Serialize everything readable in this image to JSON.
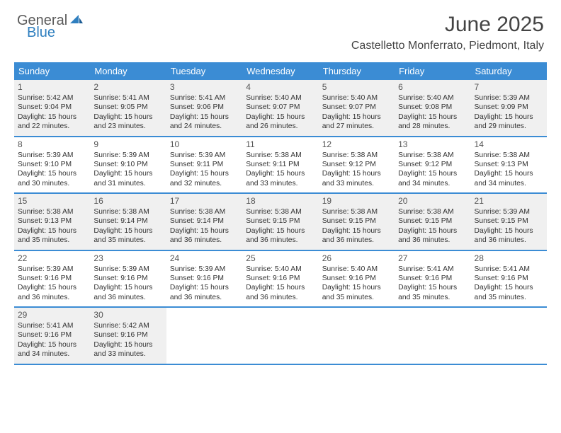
{
  "logo": {
    "text1": "General",
    "text2": "Blue"
  },
  "title": "June 2025",
  "location": "Castelletto Monferrato, Piedmont, Italy",
  "header_bg": "#3b8cd4",
  "shade_bg": "#f0f0f0",
  "day_names": [
    "Sunday",
    "Monday",
    "Tuesday",
    "Wednesday",
    "Thursday",
    "Friday",
    "Saturday"
  ],
  "weeks": [
    [
      {
        "n": "1",
        "shade": true,
        "sr": "5:42 AM",
        "ss": "9:04 PM",
        "dl": "15 hours and 22 minutes."
      },
      {
        "n": "2",
        "shade": true,
        "sr": "5:41 AM",
        "ss": "9:05 PM",
        "dl": "15 hours and 23 minutes."
      },
      {
        "n": "3",
        "shade": true,
        "sr": "5:41 AM",
        "ss": "9:06 PM",
        "dl": "15 hours and 24 minutes."
      },
      {
        "n": "4",
        "shade": true,
        "sr": "5:40 AM",
        "ss": "9:07 PM",
        "dl": "15 hours and 26 minutes."
      },
      {
        "n": "5",
        "shade": true,
        "sr": "5:40 AM",
        "ss": "9:07 PM",
        "dl": "15 hours and 27 minutes."
      },
      {
        "n": "6",
        "shade": true,
        "sr": "5:40 AM",
        "ss": "9:08 PM",
        "dl": "15 hours and 28 minutes."
      },
      {
        "n": "7",
        "shade": true,
        "sr": "5:39 AM",
        "ss": "9:09 PM",
        "dl": "15 hours and 29 minutes."
      }
    ],
    [
      {
        "n": "8",
        "shade": false,
        "sr": "5:39 AM",
        "ss": "9:10 PM",
        "dl": "15 hours and 30 minutes."
      },
      {
        "n": "9",
        "shade": false,
        "sr": "5:39 AM",
        "ss": "9:10 PM",
        "dl": "15 hours and 31 minutes."
      },
      {
        "n": "10",
        "shade": false,
        "sr": "5:39 AM",
        "ss": "9:11 PM",
        "dl": "15 hours and 32 minutes."
      },
      {
        "n": "11",
        "shade": false,
        "sr": "5:38 AM",
        "ss": "9:11 PM",
        "dl": "15 hours and 33 minutes."
      },
      {
        "n": "12",
        "shade": false,
        "sr": "5:38 AM",
        "ss": "9:12 PM",
        "dl": "15 hours and 33 minutes."
      },
      {
        "n": "13",
        "shade": false,
        "sr": "5:38 AM",
        "ss": "9:12 PM",
        "dl": "15 hours and 34 minutes."
      },
      {
        "n": "14",
        "shade": false,
        "sr": "5:38 AM",
        "ss": "9:13 PM",
        "dl": "15 hours and 34 minutes."
      }
    ],
    [
      {
        "n": "15",
        "shade": true,
        "sr": "5:38 AM",
        "ss": "9:13 PM",
        "dl": "15 hours and 35 minutes."
      },
      {
        "n": "16",
        "shade": true,
        "sr": "5:38 AM",
        "ss": "9:14 PM",
        "dl": "15 hours and 35 minutes."
      },
      {
        "n": "17",
        "shade": true,
        "sr": "5:38 AM",
        "ss": "9:14 PM",
        "dl": "15 hours and 36 minutes."
      },
      {
        "n": "18",
        "shade": true,
        "sr": "5:38 AM",
        "ss": "9:15 PM",
        "dl": "15 hours and 36 minutes."
      },
      {
        "n": "19",
        "shade": true,
        "sr": "5:38 AM",
        "ss": "9:15 PM",
        "dl": "15 hours and 36 minutes."
      },
      {
        "n": "20",
        "shade": true,
        "sr": "5:38 AM",
        "ss": "9:15 PM",
        "dl": "15 hours and 36 minutes."
      },
      {
        "n": "21",
        "shade": true,
        "sr": "5:39 AM",
        "ss": "9:15 PM",
        "dl": "15 hours and 36 minutes."
      }
    ],
    [
      {
        "n": "22",
        "shade": false,
        "sr": "5:39 AM",
        "ss": "9:16 PM",
        "dl": "15 hours and 36 minutes."
      },
      {
        "n": "23",
        "shade": false,
        "sr": "5:39 AM",
        "ss": "9:16 PM",
        "dl": "15 hours and 36 minutes."
      },
      {
        "n": "24",
        "shade": false,
        "sr": "5:39 AM",
        "ss": "9:16 PM",
        "dl": "15 hours and 36 minutes."
      },
      {
        "n": "25",
        "shade": false,
        "sr": "5:40 AM",
        "ss": "9:16 PM",
        "dl": "15 hours and 36 minutes."
      },
      {
        "n": "26",
        "shade": false,
        "sr": "5:40 AM",
        "ss": "9:16 PM",
        "dl": "15 hours and 35 minutes."
      },
      {
        "n": "27",
        "shade": false,
        "sr": "5:41 AM",
        "ss": "9:16 PM",
        "dl": "15 hours and 35 minutes."
      },
      {
        "n": "28",
        "shade": false,
        "sr": "5:41 AM",
        "ss": "9:16 PM",
        "dl": "15 hours and 35 minutes."
      }
    ],
    [
      {
        "n": "29",
        "shade": true,
        "sr": "5:41 AM",
        "ss": "9:16 PM",
        "dl": "15 hours and 34 minutes."
      },
      {
        "n": "30",
        "shade": true,
        "sr": "5:42 AM",
        "ss": "9:16 PM",
        "dl": "15 hours and 33 minutes."
      },
      {
        "n": "",
        "shade": false,
        "empty": true
      },
      {
        "n": "",
        "shade": false,
        "empty": true
      },
      {
        "n": "",
        "shade": false,
        "empty": true
      },
      {
        "n": "",
        "shade": false,
        "empty": true
      },
      {
        "n": "",
        "shade": false,
        "empty": true
      }
    ]
  ],
  "labels": {
    "sunrise": "Sunrise:",
    "sunset": "Sunset:",
    "daylight": "Daylight:"
  }
}
